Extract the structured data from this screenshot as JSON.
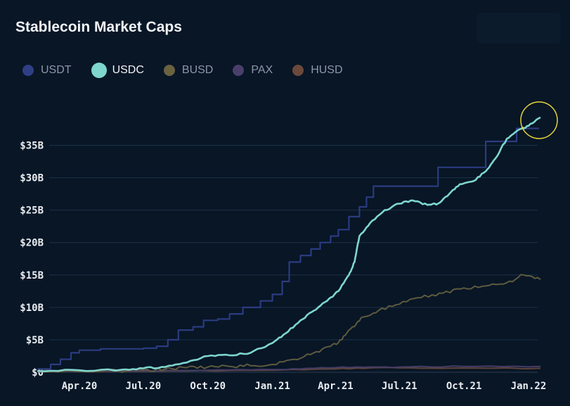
{
  "title": "Stablecoin Market Caps",
  "legend": [
    {
      "name": "USDT",
      "color": "#2f3f86",
      "active": false
    },
    {
      "name": "USDC",
      "color": "#7fd6cd",
      "active": true
    },
    {
      "name": "BUSD",
      "color": "#6b6240",
      "active": false
    },
    {
      "name": "PAX",
      "color": "#4a3f6b",
      "active": false
    },
    {
      "name": "HUSD",
      "color": "#6b4a3c",
      "active": false
    }
  ],
  "chart_data": {
    "type": "line",
    "title": "Stablecoin Market Caps",
    "xlabel": "",
    "ylabel": "",
    "x_ticks": [
      "Apr.20",
      "Jul.20",
      "Oct.20",
      "Jan.21",
      "Apr.21",
      "Jul.21",
      "Oct.21",
      "Jan.22"
    ],
    "y_ticks": [
      "$0",
      "$5B",
      "$10B",
      "$15B",
      "$20B",
      "$25B",
      "$30B",
      "$35B"
    ],
    "ylim": [
      0,
      40
    ],
    "grid": true,
    "legend_position": "top-left",
    "units": "billions USD",
    "series": [
      {
        "name": "USDT",
        "color": "#2b3b80",
        "points": [
          [
            "2020-02-01",
            0.5
          ],
          [
            "2020-02-20",
            1.2
          ],
          [
            "2020-03-05",
            2.0
          ],
          [
            "2020-03-20",
            3.0
          ],
          [
            "2020-04-01",
            3.4
          ],
          [
            "2020-05-01",
            3.6
          ],
          [
            "2020-06-01",
            3.6
          ],
          [
            "2020-07-01",
            3.7
          ],
          [
            "2020-07-20",
            4.0
          ],
          [
            "2020-08-05",
            5.0
          ],
          [
            "2020-08-20",
            6.5
          ],
          [
            "2020-09-10",
            7.0
          ],
          [
            "2020-09-25",
            8.0
          ],
          [
            "2020-10-15",
            8.2
          ],
          [
            "2020-11-01",
            9.0
          ],
          [
            "2020-11-20",
            10.0
          ],
          [
            "2020-12-15",
            11.0
          ],
          [
            "2021-01-01",
            12.0
          ],
          [
            "2021-01-15",
            14.0
          ],
          [
            "2021-01-25",
            17.0
          ],
          [
            "2021-02-10",
            18.0
          ],
          [
            "2021-02-25",
            19.0
          ],
          [
            "2021-03-10",
            20.0
          ],
          [
            "2021-03-25",
            21.0
          ],
          [
            "2021-04-05",
            22.0
          ],
          [
            "2021-04-20",
            24.0
          ],
          [
            "2021-05-05",
            25.5
          ],
          [
            "2021-05-15",
            27.0
          ],
          [
            "2021-05-25",
            28.7
          ],
          [
            "2021-07-01",
            28.7
          ],
          [
            "2021-08-15",
            28.7
          ],
          [
            "2021-08-25",
            31.6
          ],
          [
            "2021-10-15",
            31.6
          ],
          [
            "2021-11-01",
            35.6
          ],
          [
            "2021-12-05",
            35.6
          ],
          [
            "2021-12-15",
            37.6
          ],
          [
            "2022-01-15",
            37.7
          ]
        ]
      },
      {
        "name": "USDC",
        "color": "#7fd6cd",
        "points": [
          [
            "2020-02-01",
            0.2
          ],
          [
            "2020-04-01",
            0.3
          ],
          [
            "2020-06-01",
            0.4
          ],
          [
            "2020-07-01",
            0.6
          ],
          [
            "2020-08-01",
            0.8
          ],
          [
            "2020-09-01",
            1.5
          ],
          [
            "2020-10-01",
            2.5
          ],
          [
            "2020-11-01",
            2.6
          ],
          [
            "2020-12-01",
            3.0
          ],
          [
            "2021-01-01",
            4.5
          ],
          [
            "2021-01-20",
            6.0
          ],
          [
            "2021-02-10",
            8.0
          ],
          [
            "2021-03-01",
            9.5
          ],
          [
            "2021-03-20",
            11.0
          ],
          [
            "2021-04-05",
            12.5
          ],
          [
            "2021-04-20",
            15.0
          ],
          [
            "2021-04-28",
            17.0
          ],
          [
            "2021-05-05",
            21.0
          ],
          [
            "2021-05-20",
            23.0
          ],
          [
            "2021-06-10",
            25.0
          ],
          [
            "2021-07-01",
            26.0
          ],
          [
            "2021-07-20",
            26.5
          ],
          [
            "2021-08-10",
            25.8
          ],
          [
            "2021-08-25",
            26.0
          ],
          [
            "2021-09-10",
            27.5
          ],
          [
            "2021-09-25",
            29.0
          ],
          [
            "2021-10-15",
            29.5
          ],
          [
            "2021-11-01",
            31.0
          ],
          [
            "2021-11-15",
            33.0
          ],
          [
            "2021-12-01",
            36.0
          ],
          [
            "2021-12-20",
            37.5
          ],
          [
            "2022-01-01",
            38.0
          ],
          [
            "2022-01-18",
            39.3
          ]
        ]
      },
      {
        "name": "BUSD",
        "color": "#5e5a3e",
        "points": [
          [
            "2020-02-01",
            0.2
          ],
          [
            "2020-05-01",
            0.2
          ],
          [
            "2020-07-01",
            0.3
          ],
          [
            "2020-08-01",
            0.5
          ],
          [
            "2020-09-01",
            0.7
          ],
          [
            "2020-10-01",
            0.8
          ],
          [
            "2020-11-01",
            0.9
          ],
          [
            "2020-12-01",
            1.0
          ],
          [
            "2021-01-01",
            1.2
          ],
          [
            "2021-02-01",
            2.0
          ],
          [
            "2021-03-01",
            3.0
          ],
          [
            "2021-03-25",
            4.0
          ],
          [
            "2021-04-10",
            5.0
          ],
          [
            "2021-04-25",
            7.0
          ],
          [
            "2021-05-10",
            8.5
          ],
          [
            "2021-06-01",
            9.5
          ],
          [
            "2021-07-01",
            10.5
          ],
          [
            "2021-08-01",
            11.5
          ],
          [
            "2021-09-01",
            12.2
          ],
          [
            "2021-10-01",
            13.0
          ],
          [
            "2021-11-01",
            13.3
          ],
          [
            "2021-12-01",
            13.8
          ],
          [
            "2021-12-25",
            15.0
          ],
          [
            "2022-01-18",
            14.3
          ]
        ]
      },
      {
        "name": "PAX",
        "color": "#463d66",
        "points": [
          [
            "2020-02-01",
            0.2
          ],
          [
            "2020-06-01",
            0.2
          ],
          [
            "2020-10-01",
            0.3
          ],
          [
            "2021-01-01",
            0.4
          ],
          [
            "2021-03-01",
            0.6
          ],
          [
            "2021-05-01",
            0.8
          ],
          [
            "2021-07-01",
            0.8
          ],
          [
            "2021-10-01",
            0.9
          ],
          [
            "2022-01-18",
            0.9
          ]
        ]
      },
      {
        "name": "HUSD",
        "color": "#5e4338",
        "points": [
          [
            "2020-02-01",
            0.1
          ],
          [
            "2020-05-01",
            0.1
          ],
          [
            "2020-09-01",
            0.2
          ],
          [
            "2021-01-01",
            0.3
          ],
          [
            "2021-04-01",
            0.5
          ],
          [
            "2021-06-01",
            0.7
          ],
          [
            "2021-09-01",
            0.6
          ],
          [
            "2022-01-18",
            0.6
          ]
        ]
      }
    ],
    "annotations": [
      {
        "type": "circle",
        "target": "USDC latest value",
        "color": "#e6d53a"
      }
    ]
  }
}
